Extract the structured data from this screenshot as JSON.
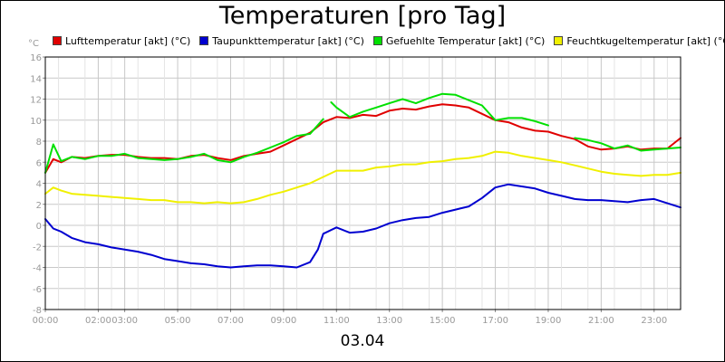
{
  "chart_data": {
    "type": "line",
    "title": "Temperaturen [pro Tag]",
    "ylabel": "°C",
    "xlabel": "03.04",
    "ylim": [
      -8,
      16
    ],
    "yticks": [
      -8,
      -6,
      -4,
      -2,
      0,
      2,
      4,
      6,
      8,
      10,
      12,
      14,
      16
    ],
    "xlim_hours": [
      0,
      24
    ],
    "xticks": [
      {
        "h": 0,
        "label": "00:00"
      },
      {
        "h": 2,
        "label": "02:00"
      },
      {
        "h": 3,
        "label": "03:00"
      },
      {
        "h": 5,
        "label": "05:00"
      },
      {
        "h": 7,
        "label": "07:00"
      },
      {
        "h": 9,
        "label": "09:00"
      },
      {
        "h": 11,
        "label": "11:00"
      },
      {
        "h": 13,
        "label": "13:00"
      },
      {
        "h": 15,
        "label": "15:00"
      },
      {
        "h": 17,
        "label": "17:00"
      },
      {
        "h": 19,
        "label": "19:00"
      },
      {
        "h": 21,
        "label": "21:00"
      },
      {
        "h": 23,
        "label": "23:00"
      }
    ],
    "grid": true,
    "legend_position": "top",
    "series": [
      {
        "name": "Lufttemperatur [akt] (°C)",
        "color": "#e00000",
        "x": [
          0,
          0.3,
          0.6,
          1,
          1.5,
          2,
          2.5,
          3,
          3.5,
          4,
          4.5,
          5,
          5.5,
          6,
          6.5,
          7,
          7.5,
          8,
          8.5,
          9,
          9.5,
          10,
          10.5,
          11,
          11.5,
          12,
          12.5,
          13,
          13.5,
          14,
          14.5,
          15,
          15.5,
          16,
          16.5,
          17,
          17.5,
          18,
          18.5,
          19,
          19.5,
          20,
          20.5,
          21,
          21.5,
          22,
          22.5,
          23,
          23.5,
          24
        ],
        "y": [
          5.0,
          6.3,
          6.0,
          6.5,
          6.4,
          6.6,
          6.7,
          6.7,
          6.5,
          6.4,
          6.4,
          6.3,
          6.6,
          6.7,
          6.4,
          6.2,
          6.6,
          6.8,
          7.0,
          7.6,
          8.2,
          8.8,
          9.8,
          10.3,
          10.2,
          10.5,
          10.4,
          10.9,
          11.1,
          11.0,
          11.3,
          11.5,
          11.4,
          11.2,
          10.6,
          10.0,
          9.8,
          9.3,
          9.0,
          8.9,
          8.5,
          8.2,
          7.5,
          7.2,
          7.3,
          7.5,
          7.2,
          7.3,
          7.3,
          8.3
        ]
      },
      {
        "name": "Taupunkttemperatur [akt] (°C)",
        "color": "#0000d0",
        "x": [
          0,
          0.3,
          0.6,
          1,
          1.5,
          2,
          2.5,
          3,
          3.5,
          4,
          4.5,
          5,
          5.5,
          6,
          6.5,
          7,
          7.5,
          8,
          8.5,
          9,
          9.5,
          10,
          10.3,
          10.5,
          11,
          11.5,
          12,
          12.5,
          13,
          13.5,
          14,
          14.5,
          15,
          15.5,
          16,
          16.5,
          17,
          17.5,
          18,
          18.5,
          19,
          19.5,
          20,
          20.5,
          21,
          21.5,
          22,
          22.5,
          23,
          23.5,
          24
        ],
        "y": [
          0.6,
          -0.3,
          -0.6,
          -1.2,
          -1.6,
          -1.8,
          -2.1,
          -2.3,
          -2.5,
          -2.8,
          -3.2,
          -3.4,
          -3.6,
          -3.7,
          -3.9,
          -4.0,
          -3.9,
          -3.8,
          -3.8,
          -3.9,
          -4.0,
          -3.5,
          -2.3,
          -0.8,
          -0.2,
          -0.7,
          -0.6,
          -0.3,
          0.2,
          0.5,
          0.7,
          0.8,
          1.2,
          1.5,
          1.8,
          2.6,
          3.6,
          3.9,
          3.7,
          3.5,
          3.1,
          2.8,
          2.5,
          2.4,
          2.4,
          2.3,
          2.2,
          2.4,
          2.5,
          2.1,
          1.7
        ]
      },
      {
        "name": "Gefuehlte Temperatur [akt] (°C)",
        "color": "#00e000",
        "x": [
          0,
          0.3,
          0.6,
          1,
          1.5,
          2,
          2.5,
          3,
          3.5,
          4,
          4.5,
          5,
          5.5,
          6,
          6.5,
          7,
          7.5,
          8,
          8.5,
          9,
          9.5,
          10,
          10.5,
          null,
          10.8,
          11,
          11.5,
          12,
          12.5,
          13,
          13.5,
          14,
          14.5,
          15,
          15.5,
          16,
          16.5,
          17,
          17.5,
          18,
          18.5,
          19,
          null,
          20,
          20.5,
          21,
          21.5,
          22,
          22.5,
          23,
          23.5,
          24
        ],
        "y": [
          5.0,
          7.7,
          6.1,
          6.5,
          6.3,
          6.6,
          6.6,
          6.8,
          6.4,
          6.3,
          6.2,
          6.3,
          6.5,
          6.8,
          6.2,
          6.0,
          6.5,
          6.9,
          7.4,
          7.9,
          8.5,
          8.7,
          10.1,
          null,
          11.7,
          11.2,
          10.3,
          10.8,
          11.2,
          11.6,
          12.0,
          11.6,
          12.1,
          12.5,
          12.4,
          11.9,
          11.4,
          10.0,
          10.2,
          10.2,
          9.9,
          9.5,
          null,
          8.3,
          8.1,
          7.8,
          7.3,
          7.6,
          7.1,
          7.2,
          7.3,
          7.4
        ]
      },
      {
        "name": "Feuchtkugeltemperatur [akt] (°C)",
        "color": "#f0f000",
        "x": [
          0,
          0.3,
          0.6,
          1,
          1.5,
          2,
          2.5,
          3,
          3.5,
          4,
          4.5,
          5,
          5.5,
          6,
          6.5,
          7,
          7.5,
          8,
          8.5,
          9,
          9.5,
          10,
          10.5,
          11,
          11.5,
          12,
          12.5,
          13,
          13.5,
          14,
          14.5,
          15,
          15.5,
          16,
          16.5,
          17,
          17.5,
          18,
          18.5,
          19,
          19.5,
          20,
          20.5,
          21,
          21.5,
          22,
          22.5,
          23,
          23.5,
          24
        ],
        "y": [
          3.0,
          3.6,
          3.3,
          3.0,
          2.9,
          2.8,
          2.7,
          2.6,
          2.5,
          2.4,
          2.4,
          2.2,
          2.2,
          2.1,
          2.2,
          2.1,
          2.2,
          2.5,
          2.9,
          3.2,
          3.6,
          4.0,
          4.6,
          5.2,
          5.2,
          5.2,
          5.5,
          5.6,
          5.8,
          5.8,
          6.0,
          6.1,
          6.3,
          6.4,
          6.6,
          7.0,
          6.9,
          6.6,
          6.4,
          6.2,
          6.0,
          5.7,
          5.4,
          5.1,
          4.9,
          4.8,
          4.7,
          4.8,
          4.8,
          5.0
        ]
      }
    ]
  }
}
